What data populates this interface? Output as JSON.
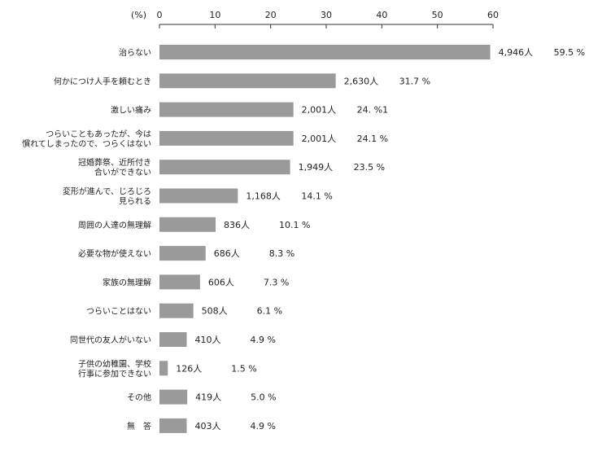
{
  "chart_data": {
    "type": "bar",
    "orientation": "horizontal",
    "unit_label": "(%)",
    "x_ticks": [
      "0",
      "10",
      "20",
      "30",
      "40",
      "50",
      "60"
    ],
    "xlim": [
      0,
      60
    ],
    "grid": false,
    "legend": "none",
    "bar_color": "#9a9a9a",
    "categories": [
      {
        "lines": [
          "治らない"
        ],
        "count": "4,946人",
        "percent_label": "59.5 %",
        "value": 59.5
      },
      {
        "lines": [
          "何かにつけ人手を頼むとき"
        ],
        "count": "2,630人",
        "percent_label": "31.7 %",
        "value": 31.7
      },
      {
        "lines": [
          "激しい痛み"
        ],
        "count": "2,001人",
        "percent_label": "24. %1",
        "value": 24.1
      },
      {
        "lines": [
          "つらいこともあったが、今は",
          "慣れてしまったので、つらくはない"
        ],
        "count": "2,001人",
        "percent_label": "24.1 %",
        "value": 24.1
      },
      {
        "lines": [
          "冠婚葬祭、近所付き",
          "合いができない"
        ],
        "count": "1,949人",
        "percent_label": "23.5 %",
        "value": 23.5
      },
      {
        "lines": [
          "変形が進んで、じろじろ",
          "見られる"
        ],
        "count": "1,168人",
        "percent_label": "14.1 %",
        "value": 14.1
      },
      {
        "lines": [
          "周囲の人達の無理解"
        ],
        "count": "836人",
        "percent_label": "10.1 %",
        "value": 10.1
      },
      {
        "lines": [
          "必要な物が使えない"
        ],
        "count": "686人",
        "percent_label": "8.3 %",
        "value": 8.3
      },
      {
        "lines": [
          "家族の無理解"
        ],
        "count": "606人",
        "percent_label": "7.3 %",
        "value": 7.3
      },
      {
        "lines": [
          "つらいことはない"
        ],
        "count": "508人",
        "percent_label": "6.1 %",
        "value": 6.1
      },
      {
        "lines": [
          "同世代の友人がいない"
        ],
        "count": "410人",
        "percent_label": "4.9 %",
        "value": 4.9
      },
      {
        "lines": [
          "子供の幼稚園、学校",
          "行事に参加できない"
        ],
        "count": "126人",
        "percent_label": "1.5 %",
        "value": 1.5
      },
      {
        "lines": [
          "その他"
        ],
        "count": "419人",
        "percent_label": "5.0 %",
        "value": 5.0
      },
      {
        "lines": [
          "無　答"
        ],
        "count": "403人",
        "percent_label": "4.9 %",
        "value": 4.9
      }
    ]
  }
}
